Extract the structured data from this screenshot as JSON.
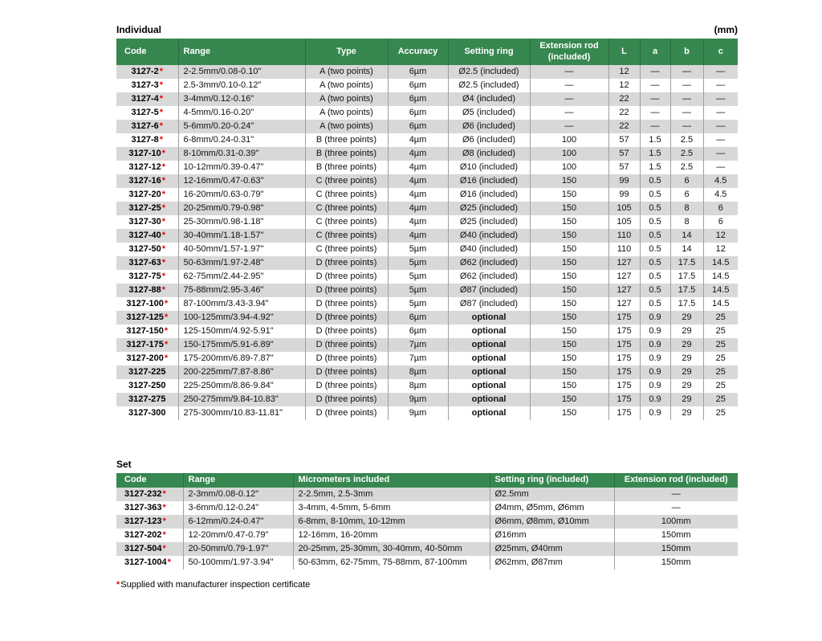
{
  "page": {
    "unit_label": "(mm)",
    "footnote_star": "*",
    "footnote_text": "Supplied with manufacturer inspection certificate"
  },
  "colors": {
    "header_green": "#378750",
    "header_separator": "#2c6b40",
    "row_gray": "#d8d8d8",
    "star_red": "#e30613"
  },
  "individual": {
    "title": "Individual",
    "headers": [
      "Code",
      "Range",
      "Type",
      "Accuracy",
      "Setting ring",
      "Extension rod (included)",
      "L",
      "a",
      "b",
      "c"
    ],
    "rows": [
      {
        "code": "3127-2",
        "star": true,
        "range": "2-2.5mm/0.08-0.10\"",
        "type": "A (two points)",
        "accuracy": "6µm",
        "setting_ring": "Ø2.5 (included)",
        "setting_ring_bold": false,
        "extension_rod": "—",
        "L": "12",
        "a": "—",
        "b": "—",
        "c": "—"
      },
      {
        "code": "3127-3",
        "star": true,
        "range": "2.5-3mm/0.10-0.12\"",
        "type": "A (two points)",
        "accuracy": "6µm",
        "setting_ring": "Ø2.5 (included)",
        "setting_ring_bold": false,
        "extension_rod": "—",
        "L": "12",
        "a": "—",
        "b": "—",
        "c": "—"
      },
      {
        "code": "3127-4",
        "star": true,
        "range": "3-4mm/0.12-0.16\"",
        "type": "A (two points)",
        "accuracy": "6µm",
        "setting_ring": "Ø4 (included)",
        "setting_ring_bold": false,
        "extension_rod": "—",
        "L": "22",
        "a": "—",
        "b": "—",
        "c": "—"
      },
      {
        "code": "3127-5",
        "star": true,
        "range": "4-5mm/0.16-0.20\"",
        "type": "A (two points)",
        "accuracy": "6µm",
        "setting_ring": "Ø5 (included)",
        "setting_ring_bold": false,
        "extension_rod": "—",
        "L": "22",
        "a": "—",
        "b": "—",
        "c": "—"
      },
      {
        "code": "3127-6",
        "star": true,
        "range": "5-6mm/0.20-0.24\"",
        "type": "A (two points)",
        "accuracy": "6µm",
        "setting_ring": "Ø6 (included)",
        "setting_ring_bold": false,
        "extension_rod": "—",
        "L": "22",
        "a": "—",
        "b": "—",
        "c": "—"
      },
      {
        "code": "3127-8",
        "star": true,
        "range": "6-8mm/0.24-0.31\"",
        "type": "B (three points)",
        "accuracy": "4µm",
        "setting_ring": "Ø6 (included)",
        "setting_ring_bold": false,
        "extension_rod": "100",
        "L": "57",
        "a": "1.5",
        "b": "2.5",
        "c": "—"
      },
      {
        "code": "3127-10",
        "star": true,
        "range": "8-10mm/0.31-0.39\"",
        "type": "B (three points)",
        "accuracy": "4µm",
        "setting_ring": "Ø8 (included)",
        "setting_ring_bold": false,
        "extension_rod": "100",
        "L": "57",
        "a": "1.5",
        "b": "2.5",
        "c": "—"
      },
      {
        "code": "3127-12",
        "star": true,
        "range": "10-12mm/0.39-0.47\"",
        "type": "B (three points)",
        "accuracy": "4µm",
        "setting_ring": "Ø10 (included)",
        "setting_ring_bold": false,
        "extension_rod": "100",
        "L": "57",
        "a": "1.5",
        "b": "2.5",
        "c": "—"
      },
      {
        "code": "3127-16",
        "star": true,
        "range": "12-16mm/0.47-0.63\"",
        "type": "C (three points)",
        "accuracy": "4µm",
        "setting_ring": "Ø16 (included)",
        "setting_ring_bold": false,
        "extension_rod": "150",
        "L": "99",
        "a": "0.5",
        "b": "6",
        "c": "4.5"
      },
      {
        "code": "3127-20",
        "star": true,
        "range": "16-20mm/0.63-0.79\"",
        "type": "C (three points)",
        "accuracy": "4µm",
        "setting_ring": "Ø16 (included)",
        "setting_ring_bold": false,
        "extension_rod": "150",
        "L": "99",
        "a": "0.5",
        "b": "6",
        "c": "4.5"
      },
      {
        "code": "3127-25",
        "star": true,
        "range": "20-25mm/0.79-0.98\"",
        "type": "C (three points)",
        "accuracy": "4µm",
        "setting_ring": "Ø25 (included)",
        "setting_ring_bold": false,
        "extension_rod": "150",
        "L": "105",
        "a": "0.5",
        "b": "8",
        "c": "6"
      },
      {
        "code": "3127-30",
        "star": true,
        "range": "25-30mm/0.98-1.18\"",
        "type": "C (three points)",
        "accuracy": "4µm",
        "setting_ring": "Ø25 (included)",
        "setting_ring_bold": false,
        "extension_rod": "150",
        "L": "105",
        "a": "0.5",
        "b": "8",
        "c": "6"
      },
      {
        "code": "3127-40",
        "star": true,
        "range": "30-40mm/1.18-1.57\"",
        "type": "C (three points)",
        "accuracy": "4µm",
        "setting_ring": "Ø40 (included)",
        "setting_ring_bold": false,
        "extension_rod": "150",
        "L": "110",
        "a": "0.5",
        "b": "14",
        "c": "12"
      },
      {
        "code": "3127-50",
        "star": true,
        "range": "40-50mm/1.57-1.97\"",
        "type": "C (three points)",
        "accuracy": "5µm",
        "setting_ring": "Ø40 (included)",
        "setting_ring_bold": false,
        "extension_rod": "150",
        "L": "110",
        "a": "0.5",
        "b": "14",
        "c": "12"
      },
      {
        "code": "3127-63",
        "star": true,
        "range": "50-63mm/1.97-2.48\"",
        "type": "D (three points)",
        "accuracy": "5µm",
        "setting_ring": "Ø62 (included)",
        "setting_ring_bold": false,
        "extension_rod": "150",
        "L": "127",
        "a": "0.5",
        "b": "17.5",
        "c": "14.5"
      },
      {
        "code": "3127-75",
        "star": true,
        "range": "62-75mm/2.44-2.95\"",
        "type": "D (three points)",
        "accuracy": "5µm",
        "setting_ring": "Ø62 (included)",
        "setting_ring_bold": false,
        "extension_rod": "150",
        "L": "127",
        "a": "0.5",
        "b": "17.5",
        "c": "14.5"
      },
      {
        "code": "3127-88",
        "star": true,
        "range": "75-88mm/2.95-3.46\"",
        "type": "D (three points)",
        "accuracy": "5µm",
        "setting_ring": "Ø87 (included)",
        "setting_ring_bold": false,
        "extension_rod": "150",
        "L": "127",
        "a": "0.5",
        "b": "17.5",
        "c": "14.5"
      },
      {
        "code": "3127-100",
        "star": true,
        "range": "87-100mm/3.43-3.94\"",
        "type": "D (three points)",
        "accuracy": "5µm",
        "setting_ring": "Ø87 (included)",
        "setting_ring_bold": false,
        "extension_rod": "150",
        "L": "127",
        "a": "0.5",
        "b": "17.5",
        "c": "14.5"
      },
      {
        "code": "3127-125",
        "star": true,
        "range": "100-125mm/3.94-4.92\"",
        "type": "D (three points)",
        "accuracy": "6µm",
        "setting_ring": "optional",
        "setting_ring_bold": true,
        "extension_rod": "150",
        "L": "175",
        "a": "0.9",
        "b": "29",
        "c": "25"
      },
      {
        "code": "3127-150",
        "star": true,
        "range": "125-150mm/4.92-5.91\"",
        "type": "D (three points)",
        "accuracy": "6µm",
        "setting_ring": "optional",
        "setting_ring_bold": true,
        "extension_rod": "150",
        "L": "175",
        "a": "0.9",
        "b": "29",
        "c": "25"
      },
      {
        "code": "3127-175",
        "star": true,
        "range": "150-175mm/5.91-6.89\"",
        "type": "D (three points)",
        "accuracy": "7µm",
        "setting_ring": "optional",
        "setting_ring_bold": true,
        "extension_rod": "150",
        "L": "175",
        "a": "0.9",
        "b": "29",
        "c": "25"
      },
      {
        "code": "3127-200",
        "star": true,
        "range": "175-200mm/6.89-7.87\"",
        "type": "D (three points)",
        "accuracy": "7µm",
        "setting_ring": "optional",
        "setting_ring_bold": true,
        "extension_rod": "150",
        "L": "175",
        "a": "0.9",
        "b": "29",
        "c": "25"
      },
      {
        "code": "3127-225",
        "star": false,
        "range": "200-225mm/7.87-8.86\"",
        "type": "D (three points)",
        "accuracy": "8µm",
        "setting_ring": "optional",
        "setting_ring_bold": true,
        "extension_rod": "150",
        "L": "175",
        "a": "0.9",
        "b": "29",
        "c": "25"
      },
      {
        "code": "3127-250",
        "star": false,
        "range": "225-250mm/8.86-9.84\"",
        "type": "D (three points)",
        "accuracy": "8µm",
        "setting_ring": "optional",
        "setting_ring_bold": true,
        "extension_rod": "150",
        "L": "175",
        "a": "0.9",
        "b": "29",
        "c": "25"
      },
      {
        "code": "3127-275",
        "star": false,
        "range": "250-275mm/9.84-10.83\"",
        "type": "D (three points)",
        "accuracy": "9µm",
        "setting_ring": "optional",
        "setting_ring_bold": true,
        "extension_rod": "150",
        "L": "175",
        "a": "0.9",
        "b": "29",
        "c": "25"
      },
      {
        "code": "3127-300",
        "star": false,
        "range": "275-300mm/10.83-11.81\"",
        "type": "D (three points)",
        "accuracy": "9µm",
        "setting_ring": "optional",
        "setting_ring_bold": true,
        "extension_rod": "150",
        "L": "175",
        "a": "0.9",
        "b": "29",
        "c": "25"
      }
    ]
  },
  "set": {
    "title": "Set",
    "headers": [
      "Code",
      "Range",
      "Micrometers included",
      "Setting ring (included)",
      "Extension rod (included)"
    ],
    "rows": [
      {
        "code": "3127-232",
        "star": true,
        "range": "2-3mm/0.08-0.12\"",
        "micrometers": "2-2.5mm, 2.5-3mm",
        "setting_ring": "Ø2.5mm",
        "extension_rod": "—"
      },
      {
        "code": "3127-363",
        "star": true,
        "range": "3-6mm/0.12-0.24\"",
        "micrometers": "3-4mm, 4-5mm, 5-6mm",
        "setting_ring": "Ø4mm, Ø5mm, Ø6mm",
        "extension_rod": "—"
      },
      {
        "code": "3127-123",
        "star": true,
        "range": "6-12mm/0.24-0.47\"",
        "micrometers": "6-8mm, 8-10mm, 10-12mm",
        "setting_ring": "Ø6mm, Ø8mm, Ø10mm",
        "extension_rod": "100mm"
      },
      {
        "code": "3127-202",
        "star": true,
        "range": "12-20mm/0.47-0.79\"",
        "micrometers": "12-16mm, 16-20mm",
        "setting_ring": "Ø16mm",
        "extension_rod": "150mm"
      },
      {
        "code": "3127-504",
        "star": true,
        "range": "20-50mm/0.79-1.97\"",
        "micrometers": "20-25mm, 25-30mm, 30-40mm, 40-50mm",
        "setting_ring": "Ø25mm, Ø40mm",
        "extension_rod": "150mm"
      },
      {
        "code": "3127-1004",
        "star": true,
        "range": "50-100mm/1.97-3.94\"",
        "micrometers": "50-63mm, 62-75mm, 75-88mm, 87-100mm",
        "setting_ring": "Ø62mm, Ø87mm",
        "extension_rod": "150mm"
      }
    ]
  }
}
